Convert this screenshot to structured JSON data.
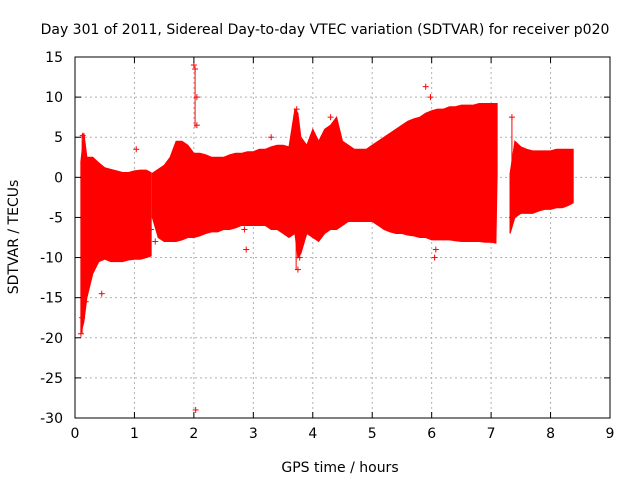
{
  "chart_data": {
    "type": "errorbar",
    "title": "Day 301 of 2011, Sidereal Day-to-day VTEC variation (SDTVAR) for receiver p020",
    "xlabel": "GPS time / hours",
    "ylabel": "SDTVAR / TECUs",
    "xlim": [
      0,
      9
    ],
    "ylim": [
      -30,
      15
    ],
    "xticks": [
      0,
      1,
      2,
      3,
      4,
      5,
      6,
      7,
      8,
      9
    ],
    "yticks": [
      -30,
      -25,
      -20,
      -15,
      -10,
      -5,
      0,
      5,
      10,
      15
    ],
    "grid": true,
    "color": "#ff0000",
    "envelope_segments": [
      {
        "name": "segment-1",
        "points": [
          [
            0.1,
            -19.5,
            2.0
          ],
          [
            0.15,
            -18.0,
            5.5
          ],
          [
            0.2,
            -15.0,
            2.5
          ],
          [
            0.3,
            -12.0,
            2.5
          ],
          [
            0.4,
            -10.5,
            1.8
          ],
          [
            0.5,
            -10.2,
            1.2
          ],
          [
            0.6,
            -10.5,
            1.0
          ],
          [
            0.7,
            -10.5,
            0.8
          ],
          [
            0.8,
            -10.5,
            0.6
          ],
          [
            0.9,
            -10.3,
            0.6
          ],
          [
            1.0,
            -10.2,
            0.8
          ],
          [
            1.1,
            -10.2,
            0.9
          ],
          [
            1.2,
            -10.0,
            0.9
          ],
          [
            1.28,
            -9.8,
            0.6
          ]
        ]
      },
      {
        "name": "segment-2",
        "points": [
          [
            1.3,
            -5.0,
            0.5
          ],
          [
            1.4,
            -7.5,
            1.0
          ],
          [
            1.5,
            -8.0,
            1.5
          ],
          [
            1.6,
            -8.0,
            2.5
          ],
          [
            1.7,
            -8.0,
            4.5
          ],
          [
            1.8,
            -7.8,
            4.5
          ],
          [
            1.9,
            -7.5,
            4.0
          ],
          [
            2.0,
            -7.5,
            3.0
          ],
          [
            2.1,
            -7.3,
            3.0
          ],
          [
            2.2,
            -7.0,
            2.8
          ],
          [
            2.3,
            -6.8,
            2.5
          ],
          [
            2.4,
            -6.8,
            2.5
          ],
          [
            2.5,
            -6.5,
            2.5
          ],
          [
            2.6,
            -6.5,
            2.8
          ],
          [
            2.7,
            -6.3,
            3.0
          ],
          [
            2.8,
            -6.0,
            3.0
          ],
          [
            2.9,
            -6.0,
            3.2
          ],
          [
            3.0,
            -6.0,
            3.2
          ],
          [
            3.1,
            -6.0,
            3.5
          ],
          [
            3.2,
            -6.0,
            3.5
          ],
          [
            3.3,
            -6.5,
            3.8
          ],
          [
            3.4,
            -6.5,
            4.0
          ],
          [
            3.5,
            -7.0,
            4.0
          ],
          [
            3.6,
            -7.5,
            3.8
          ],
          [
            3.7,
            -7.0,
            8.5
          ],
          [
            3.75,
            -10.0,
            8.0
          ],
          [
            3.8,
            -9.5,
            5.0
          ],
          [
            3.9,
            -7.0,
            4.0
          ],
          [
            4.0,
            -7.5,
            6.0
          ],
          [
            4.1,
            -8.0,
            4.5
          ],
          [
            4.2,
            -7.0,
            6.0
          ],
          [
            4.3,
            -6.5,
            6.5
          ],
          [
            4.4,
            -6.5,
            7.5
          ],
          [
            4.5,
            -6.0,
            4.5
          ],
          [
            4.6,
            -5.5,
            4.0
          ],
          [
            4.7,
            -5.5,
            3.5
          ],
          [
            4.8,
            -5.5,
            3.5
          ],
          [
            4.9,
            -5.5,
            3.5
          ],
          [
            5.0,
            -5.5,
            4.0
          ],
          [
            5.1,
            -6.0,
            4.5
          ],
          [
            5.2,
            -6.5,
            5.0
          ],
          [
            5.3,
            -6.8,
            5.5
          ],
          [
            5.4,
            -7.0,
            6.0
          ],
          [
            5.5,
            -7.0,
            6.5
          ],
          [
            5.6,
            -7.2,
            7.0
          ],
          [
            5.7,
            -7.3,
            7.3
          ],
          [
            5.8,
            -7.5,
            7.5
          ],
          [
            5.9,
            -7.5,
            8.0
          ],
          [
            6.0,
            -7.8,
            8.3
          ],
          [
            6.1,
            -7.8,
            8.5
          ],
          [
            6.2,
            -7.8,
            8.5
          ],
          [
            6.3,
            -7.8,
            8.8
          ],
          [
            6.4,
            -7.9,
            8.8
          ],
          [
            6.5,
            -8.0,
            9.0
          ],
          [
            6.6,
            -8.0,
            9.0
          ],
          [
            6.7,
            -8.0,
            9.0
          ],
          [
            6.8,
            -8.0,
            9.2
          ],
          [
            6.9,
            -8.1,
            9.2
          ],
          [
            7.0,
            -8.1,
            9.2
          ],
          [
            7.08,
            -8.2,
            9.2
          ],
          [
            7.1,
            0.0,
            9.2
          ]
        ]
      },
      {
        "name": "segment-3",
        "points": [
          [
            7.32,
            -7.0,
            0.5
          ],
          [
            7.4,
            -5.0,
            4.5
          ],
          [
            7.5,
            -4.5,
            3.8
          ],
          [
            7.6,
            -4.5,
            3.5
          ],
          [
            7.7,
            -4.5,
            3.3
          ],
          [
            7.8,
            -4.2,
            3.3
          ],
          [
            7.9,
            -4.0,
            3.3
          ],
          [
            8.0,
            -4.0,
            3.3
          ],
          [
            8.1,
            -3.8,
            3.5
          ],
          [
            8.2,
            -3.8,
            3.5
          ],
          [
            8.3,
            -3.5,
            3.5
          ],
          [
            8.38,
            -3.2,
            3.5
          ]
        ]
      }
    ],
    "outliers": [
      [
        0.1,
        -19.5
      ],
      [
        0.12,
        -17.5
      ],
      [
        0.13,
        5.2
      ],
      [
        0.18,
        -15.5
      ],
      [
        0.45,
        -14.5
      ],
      [
        1.03,
        3.5
      ],
      [
        1.28,
        -6.5
      ],
      [
        1.35,
        -8.0
      ],
      [
        2.0,
        14.0
      ],
      [
        2.02,
        13.5
      ],
      [
        2.03,
        -29.0
      ],
      [
        2.05,
        6.5
      ],
      [
        2.05,
        10.0
      ],
      [
        2.85,
        -6.5
      ],
      [
        2.88,
        -9.0
      ],
      [
        3.3,
        5.0
      ],
      [
        3.73,
        8.5
      ],
      [
        3.75,
        -11.5
      ],
      [
        3.78,
        -10.0
      ],
      [
        4.3,
        7.5
      ],
      [
        5.9,
        11.3
      ],
      [
        5.98,
        10.0
      ],
      [
        6.05,
        -10.0
      ],
      [
        6.07,
        -9.0
      ],
      [
        7.35,
        7.5
      ],
      [
        7.35,
        -5.0
      ]
    ]
  }
}
